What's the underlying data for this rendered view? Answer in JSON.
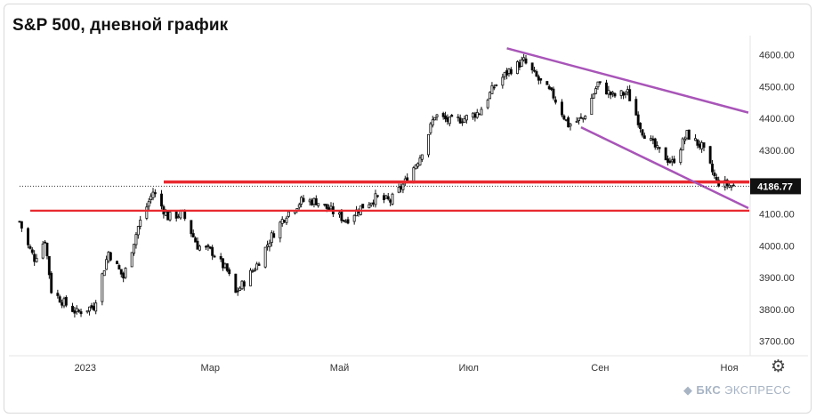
{
  "title": "S&P 500, дневной график",
  "brand": {
    "short": "БКС",
    "name": "ЭКСПРЕСС",
    "icon": "bks-logo-icon",
    "color": "#a8b4c4"
  },
  "settings_icon": "gear-icon",
  "chart_data": {
    "type": "candlestick",
    "title": "S&P 500, дневной график",
    "x_ticks": [
      "2023",
      "Мар",
      "Май",
      "Июл",
      "Сен",
      "Ноя"
    ],
    "y_ticks": [
      3700,
      3800,
      3900,
      4000,
      4100,
      4200,
      4300,
      4400,
      4500,
      4600
    ],
    "y_tick_labels": [
      "3700.00",
      "3800.00",
      "3900.00",
      "4000.00",
      "4100.00",
      "4200.00",
      "4300.00",
      "4400.00",
      "4500.00",
      "4600.00"
    ],
    "ylim": [
      3660,
      4660
    ],
    "xlim": [
      "2022-12-01",
      "2023-11-10"
    ],
    "last_price": 4186.77,
    "last_price_label": "4186.77",
    "close_path": [
      [
        "2022-12-01",
        4076
      ],
      [
        "2022-12-05",
        4000
      ],
      [
        "2022-12-08",
        3960
      ],
      [
        "2022-12-13",
        4020
      ],
      [
        "2022-12-16",
        3860
      ],
      [
        "2022-12-22",
        3820
      ],
      [
        "2022-12-28",
        3790
      ],
      [
        "2023-01-05",
        3810
      ],
      [
        "2023-01-12",
        3980
      ],
      [
        "2023-01-19",
        3900
      ],
      [
        "2023-01-26",
        4060
      ],
      [
        "2023-02-02",
        4170
      ],
      [
        "2023-02-09",
        4090
      ],
      [
        "2023-02-16",
        4100
      ],
      [
        "2023-02-23",
        4000
      ],
      [
        "2023-03-02",
        3980
      ],
      [
        "2023-03-09",
        3920
      ],
      [
        "2023-03-13",
        3850
      ],
      [
        "2023-03-23",
        3940
      ],
      [
        "2023-03-30",
        4030
      ],
      [
        "2023-04-06",
        4100
      ],
      [
        "2023-04-13",
        4140
      ],
      [
        "2023-04-20",
        4140
      ],
      [
        "2023-04-27",
        4110
      ],
      [
        "2023-05-04",
        4080
      ],
      [
        "2023-05-11",
        4120
      ],
      [
        "2023-05-18",
        4150
      ],
      [
        "2023-05-25",
        4140
      ],
      [
        "2023-06-01",
        4200
      ],
      [
        "2023-06-08",
        4280
      ],
      [
        "2023-06-15",
        4410
      ],
      [
        "2023-06-22",
        4390
      ],
      [
        "2023-06-29",
        4400
      ],
      [
        "2023-07-06",
        4420
      ],
      [
        "2023-07-13",
        4500
      ],
      [
        "2023-07-20",
        4550
      ],
      [
        "2023-07-27",
        4580
      ],
      [
        "2023-08-03",
        4520
      ],
      [
        "2023-08-10",
        4470
      ],
      [
        "2023-08-17",
        4380
      ],
      [
        "2023-08-24",
        4400
      ],
      [
        "2023-08-31",
        4510
      ],
      [
        "2023-09-07",
        4470
      ],
      [
        "2023-09-14",
        4480
      ],
      [
        "2023-09-21",
        4360
      ],
      [
        "2023-09-28",
        4300
      ],
      [
        "2023-10-05",
        4260
      ],
      [
        "2023-10-12",
        4350
      ],
      [
        "2023-10-19",
        4310
      ],
      [
        "2023-10-26",
        4200
      ],
      [
        "2023-11-01",
        4190
      ],
      [
        "2023-11-03",
        4186.77
      ]
    ],
    "horizontal_levels": [
      {
        "y": 4200,
        "color": "#e8292f"
      },
      {
        "y": 4110,
        "color": "#e8292f"
      }
    ],
    "channel_lines": [
      {
        "from": [
          "2023-07-19",
          4620
        ],
        "to": [
          "2023-11-10",
          4418
        ],
        "color": "#a855b8"
      },
      {
        "from": [
          "2023-08-23",
          4372
        ],
        "to": [
          "2023-11-10",
          4118
        ],
        "color": "#a855b8"
      }
    ],
    "up_color": "#ffffff",
    "down_color": "#000000"
  }
}
